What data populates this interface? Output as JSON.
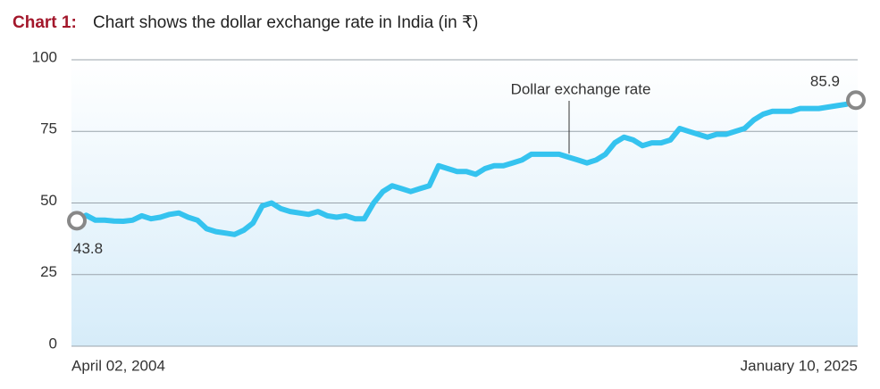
{
  "chart_data": {
    "type": "line",
    "title": {
      "label": "Chart 1:",
      "text": "Chart shows the dollar exchange rate in India (in ₹)"
    },
    "categories": [
      "April 02, 2004",
      null,
      null,
      null,
      null,
      null,
      null,
      null,
      null,
      null,
      null,
      null,
      null,
      null,
      null,
      null,
      null,
      null,
      null,
      null,
      null,
      null,
      null,
      null,
      null,
      null,
      null,
      null,
      null,
      null,
      null,
      null,
      null,
      null,
      null,
      null,
      null,
      null,
      null,
      null,
      null,
      null,
      null,
      null,
      null,
      null,
      null,
      null,
      null,
      null,
      null,
      null,
      null,
      null,
      null,
      null,
      null,
      null,
      null,
      null,
      null,
      null,
      null,
      null,
      null,
      null,
      null,
      null,
      null,
      null,
      null,
      null,
      null,
      null,
      null,
      null,
      null,
      null,
      null,
      null,
      null,
      null,
      null,
      null,
      "January 10,  2025"
    ],
    "series": [
      {
        "name": "Dollar exchange rate",
        "color": "#35c3ef",
        "values": [
          43.8,
          45.7,
          44,
          44,
          43.7,
          43.6,
          44,
          45.5,
          44.5,
          45,
          46,
          46.5,
          45,
          44,
          41,
          40,
          39.5,
          39,
          40.5,
          43,
          49,
          50,
          48,
          47,
          46.5,
          46,
          47,
          45.5,
          45,
          45.5,
          44.5,
          44.5,
          50,
          54,
          56,
          55,
          54,
          55,
          56,
          63,
          62,
          61,
          61,
          60,
          62,
          63,
          63,
          64,
          65,
          67,
          67,
          67,
          67,
          66,
          65,
          64,
          65,
          67,
          71,
          73,
          72,
          70,
          71,
          71,
          72,
          76,
          75,
          74,
          73,
          74,
          74,
          75,
          76,
          79,
          81,
          82,
          82,
          82,
          83,
          83,
          83,
          83.5,
          84,
          84.5,
          85.9
        ]
      }
    ],
    "ylim": [
      0,
      100
    ],
    "yticks": [
      0,
      25,
      50,
      75,
      100
    ],
    "grid": true
  }
}
